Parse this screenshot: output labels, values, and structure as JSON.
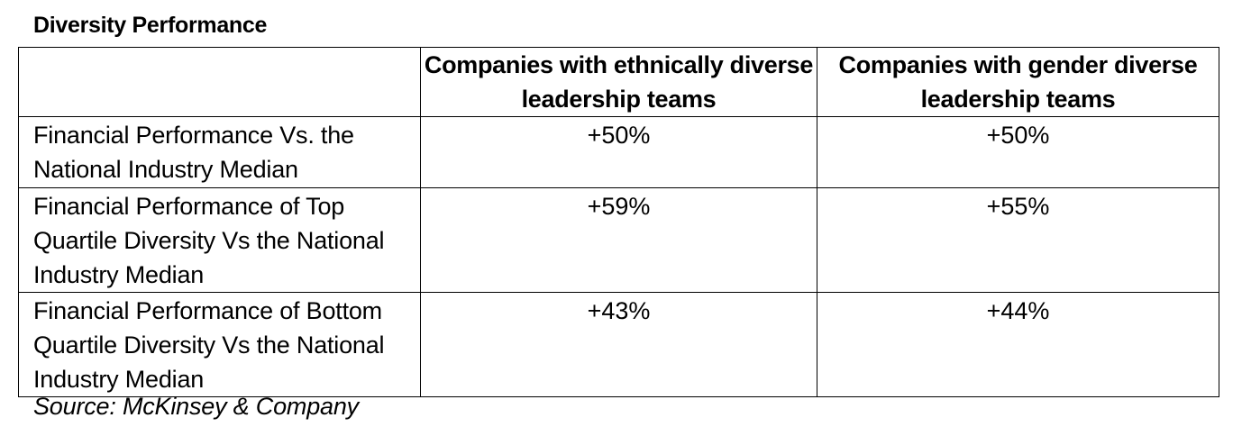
{
  "title": "Diversity Performance",
  "table": {
    "headers": [
      "",
      "Companies with ethnically diverse leadership teams",
      "Companies with gender diverse leadership teams"
    ],
    "rows": [
      {
        "label": "Financial Performance Vs. the National Industry Median",
        "ethnic": "+50%",
        "gender": "+50%"
      },
      {
        "label": "Financial Performance of Top Quartile Diversity Vs the National Industry Median",
        "ethnic": "+59%",
        "gender": "+55%"
      },
      {
        "label": "Financial Performance of Bottom Quartile Diversity Vs the National Industry Median",
        "ethnic": "+43%",
        "gender": "+44%"
      }
    ]
  },
  "source": "Source: McKinsey & Company"
}
